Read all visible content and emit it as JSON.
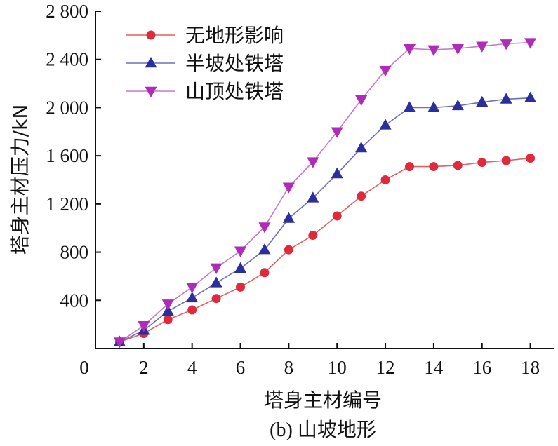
{
  "chart_data": {
    "type": "line",
    "title": "",
    "caption": "(b) 山坡地形",
    "xlabel": "塔身主材编号",
    "ylabel": "塔身主材压力/kN",
    "xlim": [
      0,
      19
    ],
    "ylim": [
      0,
      2800
    ],
    "x_ticks": [
      0,
      2,
      4,
      6,
      8,
      10,
      12,
      14,
      16,
      18
    ],
    "x_tick_labels": [
      "0",
      "2",
      "4",
      "6",
      "8",
      "10",
      "12",
      "14",
      "16",
      "18"
    ],
    "y_ticks": [
      400,
      800,
      1200,
      1600,
      2000,
      2400,
      2800
    ],
    "y_tick_labels": [
      "400",
      "800",
      "1 200",
      "1 600",
      "2 000",
      "2 400",
      "2 800"
    ],
    "legend_position": "top-left",
    "x": [
      1,
      2,
      3,
      4,
      5,
      6,
      7,
      8,
      9,
      10,
      11,
      12,
      13,
      14,
      15,
      16,
      17,
      18
    ],
    "series": [
      {
        "name": "无地形影响",
        "marker": "circle",
        "color": "#e02a3c",
        "line_color": "#e06060",
        "values": [
          55,
          125,
          240,
          320,
          415,
          510,
          630,
          820,
          940,
          1100,
          1265,
          1400,
          1510,
          1510,
          1520,
          1545,
          1560,
          1580
        ]
      },
      {
        "name": "半坡处铁塔",
        "marker": "triangle-up",
        "color": "#2b2f9e",
        "line_color": "#6c70b8",
        "values": [
          55,
          150,
          310,
          420,
          545,
          665,
          820,
          1080,
          1250,
          1450,
          1665,
          1855,
          2000,
          2000,
          2015,
          2045,
          2070,
          2080
        ]
      },
      {
        "name": "山顶处铁塔",
        "marker": "triangle-down",
        "color": "#b02cb8",
        "line_color": "#c878cc",
        "values": [
          55,
          190,
          370,
          510,
          670,
          810,
          1010,
          1340,
          1550,
          1800,
          2065,
          2310,
          2490,
          2480,
          2490,
          2510,
          2530,
          2540
        ]
      }
    ]
  }
}
